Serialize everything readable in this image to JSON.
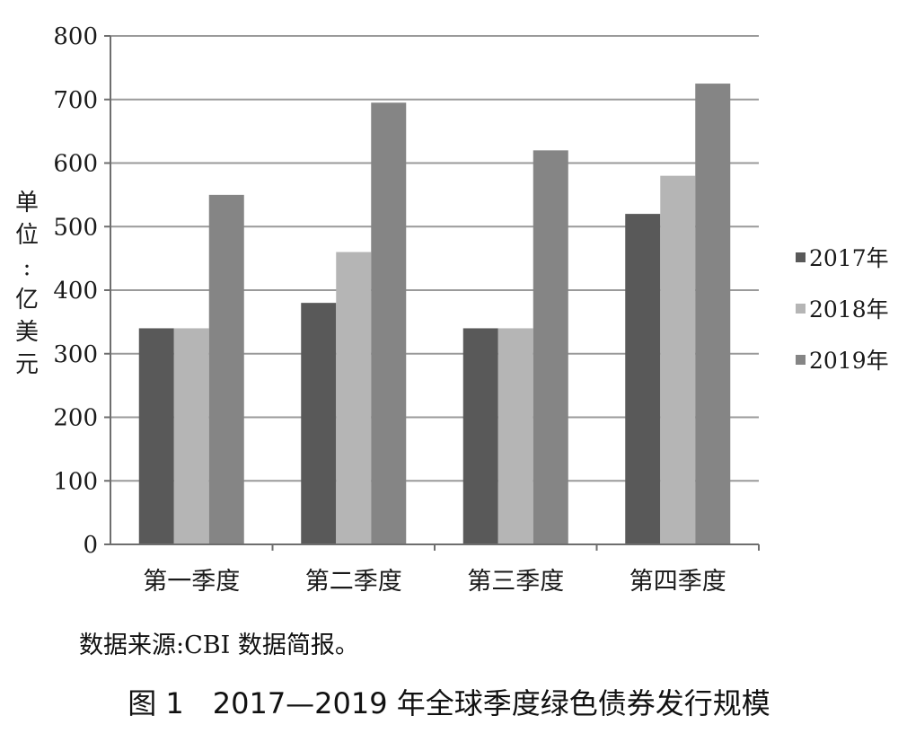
{
  "chart_data": {
    "type": "bar",
    "categories": [
      "第一季度",
      "第二季度",
      "第三季度",
      "第四季度"
    ],
    "series": [
      {
        "name": "2017年",
        "values": [
          340,
          380,
          340,
          520
        ]
      },
      {
        "name": "2018年",
        "values": [
          340,
          460,
          340,
          580
        ]
      },
      {
        "name": "2019年",
        "values": [
          550,
          695,
          620,
          725
        ]
      }
    ],
    "ylabel": "单位:亿美元",
    "ylabel_chars": [
      "单",
      "位",
      ":",
      "亿",
      "美",
      "元"
    ],
    "yticks": [
      0,
      100,
      200,
      300,
      400,
      500,
      600,
      700,
      800
    ],
    "ylim": [
      0,
      800
    ],
    "grid": true,
    "legend_position": "right"
  },
  "colors": {
    "2017年": "#595959",
    "2018年": "#b5b5b5",
    "2019年": "#858585",
    "grid": "#9a9a9a",
    "axis": "#6e6e6e"
  },
  "source_note": "数据来源:CBI 数据简报。",
  "caption": "图 1　2017—2019 年全球季度绿色债券发行规模"
}
